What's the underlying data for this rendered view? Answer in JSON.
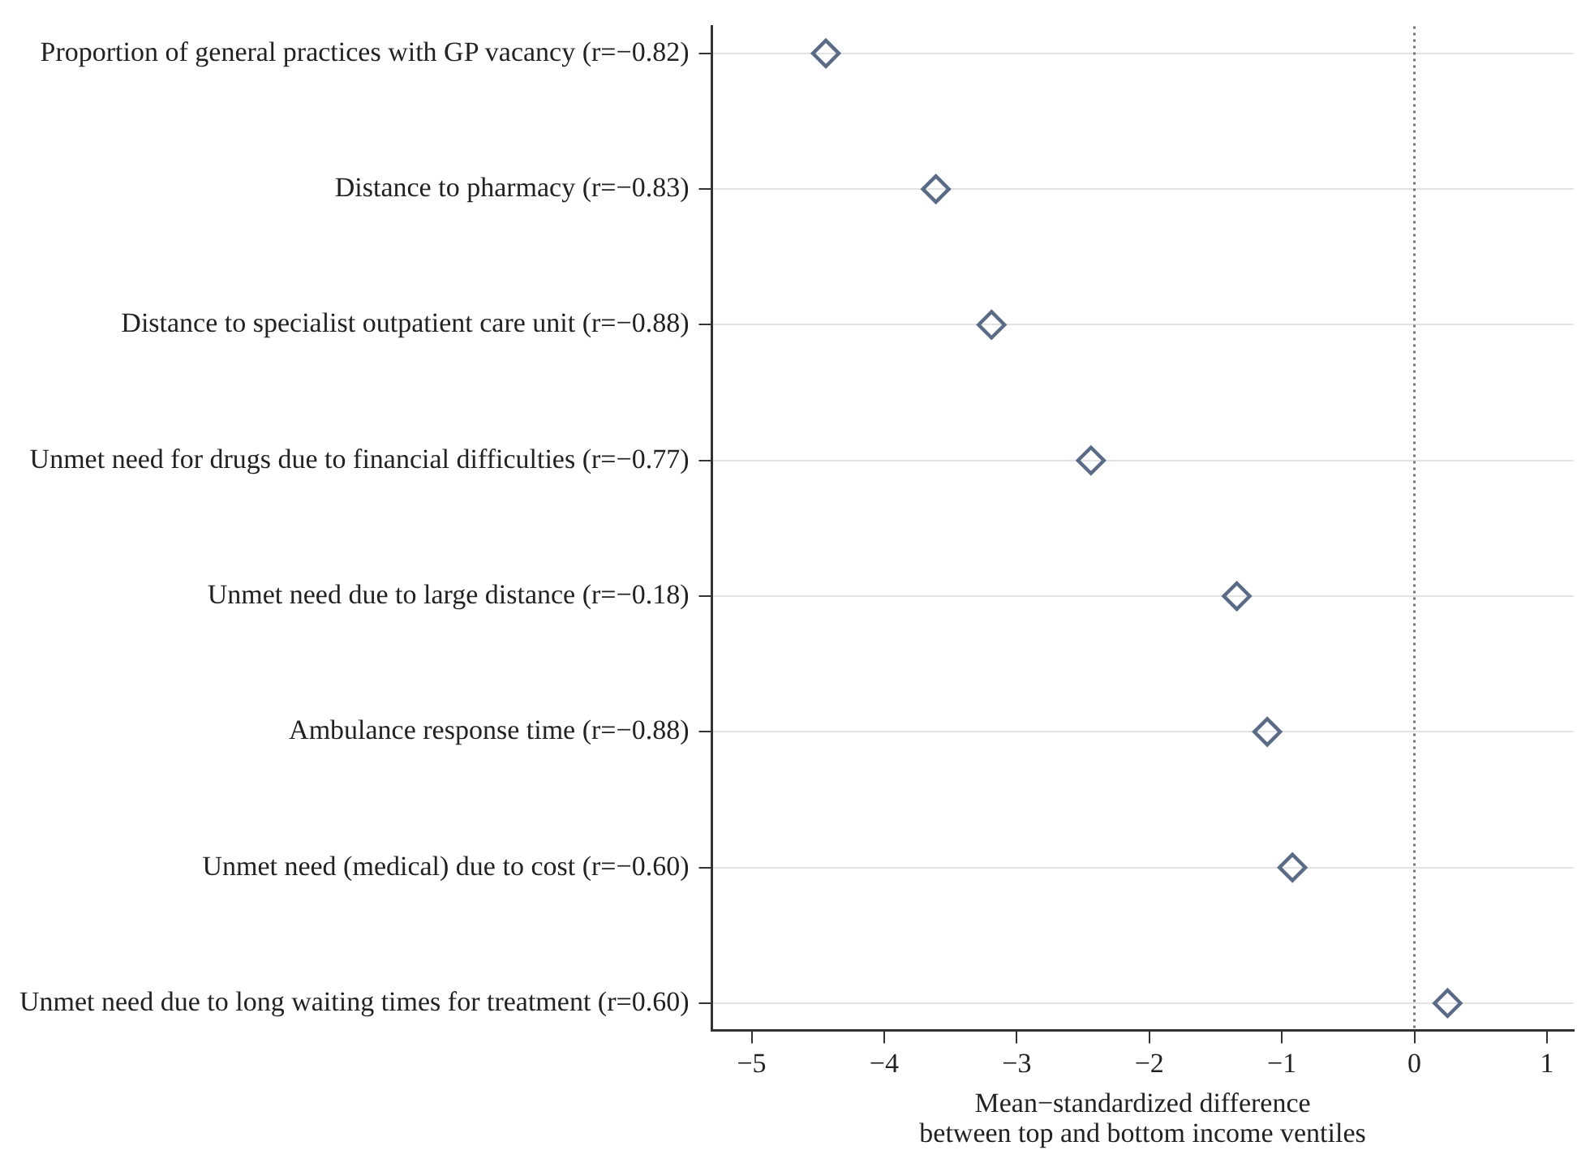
{
  "chart_data": {
    "type": "scatter",
    "xlabel": "Mean−standardized difference\nbetween top and bottom income ventiles",
    "categories": [
      "Proportion of general practices with GP vacancy (r=−0.82)",
      "Distance to pharmacy (r=−0.83)",
      "Distance to specialist outpatient care unit (r=−0.88)",
      "Unmet need for drugs due to financial difficulties (r=−0.77)",
      "Unmet need due to large distance (r=−0.18)",
      "Ambulance response time (r=−0.88)",
      "Unmet need (medical) due to cost (r=−0.60)",
      "Unmet need due to long waiting times for treatment (r=0.60)"
    ],
    "orientation": "horizontal",
    "values": [
      -4.44,
      -3.61,
      -3.19,
      -2.44,
      -1.34,
      -1.11,
      -0.92,
      0.25
    ],
    "color": "#5a6b86",
    "marker": "diamond",
    "xlim": [
      -5.3,
      1.2
    ],
    "xticks": [
      {
        "value": -5,
        "label": "−5"
      },
      {
        "value": -4,
        "label": "−4"
      },
      {
        "value": -3,
        "label": "−3"
      },
      {
        "value": -2,
        "label": "−2"
      },
      {
        "value": -1,
        "label": "−1"
      },
      0,
      1
    ],
    "ref_lines": [
      {
        "axis": "x",
        "value": 0,
        "color": "#777777",
        "line_style": "dotted"
      }
    ],
    "grid": "y",
    "legend": false
  }
}
